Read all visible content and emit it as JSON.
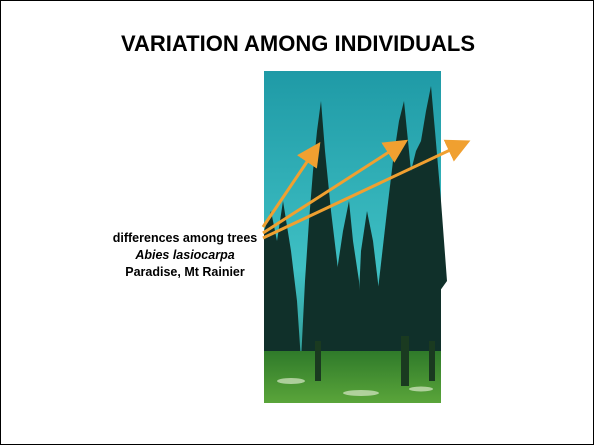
{
  "slide": {
    "title": "VARIATION AMONG INDIVIDUALS",
    "caption": [
      "differences among trees",
      "Abies lasiocarpa",
      "Paradise, Mt Rainier"
    ]
  }
}
